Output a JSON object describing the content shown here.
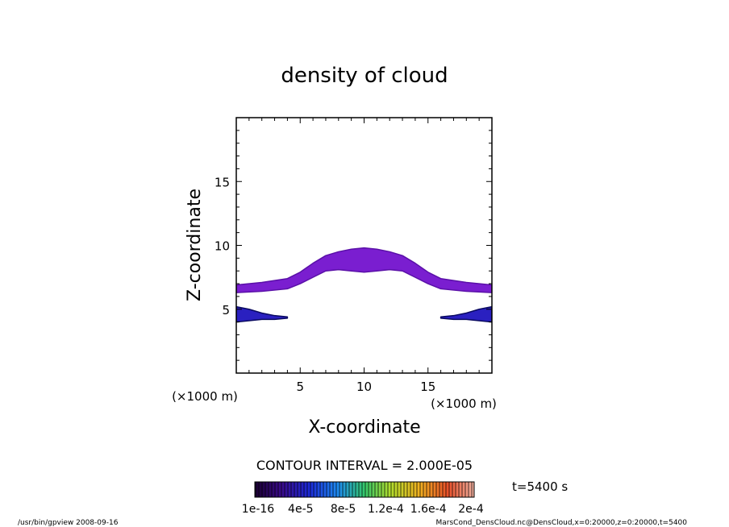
{
  "chart_data": {
    "type": "heatmap",
    "title": "density of cloud",
    "xlabel": "X-coordinate",
    "ylabel": "Z-coordinate",
    "x_unit": "(×1000 m)",
    "y_unit": "(×1000 m)",
    "xlim": [
      0,
      20
    ],
    "ylim": [
      0,
      20
    ],
    "x_ticks": [
      5,
      10,
      15
    ],
    "y_ticks": [
      5,
      10,
      15
    ],
    "grid": false,
    "contour_interval_text": "CONTOUR INTERVAL = 2.000E-05",
    "time_label": "t=5400 s",
    "colorbar": {
      "tick_labels": [
        "1e-16",
        "4e-5",
        "8e-5",
        "1.2e-4",
        "1.6e-4",
        "2e-4"
      ],
      "range": [
        0,
        0.0002
      ]
    },
    "regions": [
      {
        "name": "upper-arch",
        "x": [
          0,
          2,
          4,
          5,
          6,
          7,
          8,
          9,
          10,
          11,
          12,
          13,
          14,
          15,
          16,
          18,
          20
        ],
        "z_bottom": [
          6.3,
          6.4,
          6.6,
          7.0,
          7.5,
          8.0,
          8.1,
          8.0,
          7.9,
          8.0,
          8.1,
          8.0,
          7.5,
          7.0,
          6.6,
          6.4,
          6.3
        ],
        "z_top": [
          6.9,
          7.1,
          7.4,
          7.9,
          8.6,
          9.2,
          9.5,
          9.7,
          9.8,
          9.7,
          9.5,
          9.2,
          8.6,
          7.9,
          7.4,
          7.1,
          6.9
        ],
        "density": 3e-06
      },
      {
        "name": "lower-left",
        "x": [
          0,
          1,
          2,
          3,
          4
        ],
        "z_bottom": [
          4.0,
          4.1,
          4.2,
          4.2,
          4.3
        ],
        "z_top": [
          5.2,
          5.0,
          4.7,
          4.5,
          4.4
        ],
        "density": 3e-05
      },
      {
        "name": "lower-right",
        "x": [
          16,
          17,
          18,
          19,
          20
        ],
        "z_bottom": [
          4.3,
          4.2,
          4.2,
          4.1,
          4.0
        ],
        "z_top": [
          4.4,
          4.5,
          4.7,
          5.0,
          5.2
        ],
        "density": 3e-05
      }
    ]
  },
  "footer": {
    "left": "/usr/bin/gpview   2008-09-16",
    "right": "MarsCond_DensCloud.nc@DensCloud,x=0:20000,z=0:20000,t=5400"
  }
}
